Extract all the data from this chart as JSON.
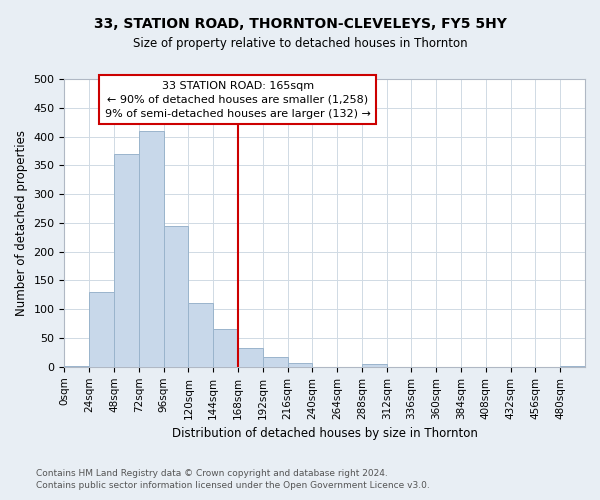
{
  "title1": "33, STATION ROAD, THORNTON-CLEVELEYS, FY5 5HY",
  "title2": "Size of property relative to detached houses in Thornton",
  "xlabel": "Distribution of detached houses by size in Thornton",
  "ylabel": "Number of detached properties",
  "bar_labels": [
    "0sqm",
    "24sqm",
    "48sqm",
    "72sqm",
    "96sqm",
    "120sqm",
    "144sqm",
    "168sqm",
    "192sqm",
    "216sqm",
    "240sqm",
    "264sqm",
    "288sqm",
    "312sqm",
    "336sqm",
    "360sqm",
    "384sqm",
    "408sqm",
    "432sqm",
    "456sqm",
    "480sqm"
  ],
  "bar_values": [
    2,
    130,
    370,
    410,
    245,
    110,
    65,
    33,
    17,
    7,
    0,
    0,
    5,
    0,
    0,
    0,
    0,
    0,
    0,
    0,
    2
  ],
  "bar_color": "#c8d8ea",
  "bar_edge_color": "#9ab4cc",
  "property_line_x": 168,
  "annotation_title": "33 STATION ROAD: 165sqm",
  "annotation_line1": "← 90% of detached houses are smaller (1,258)",
  "annotation_line2": "9% of semi-detached houses are larger (132) →",
  "annotation_box_color": "#ffffff",
  "annotation_box_edge": "#cc0000",
  "vline_color": "#cc0000",
  "ylim": [
    0,
    500
  ],
  "yticks": [
    0,
    50,
    100,
    150,
    200,
    250,
    300,
    350,
    400,
    450,
    500
  ],
  "footnote1": "Contains HM Land Registry data © Crown copyright and database right 2024.",
  "footnote2": "Contains public sector information licensed under the Open Government Licence v3.0.",
  "bg_color": "#e8eef4",
  "plot_bg_color": "#ffffff",
  "grid_color": "#d0dae4"
}
